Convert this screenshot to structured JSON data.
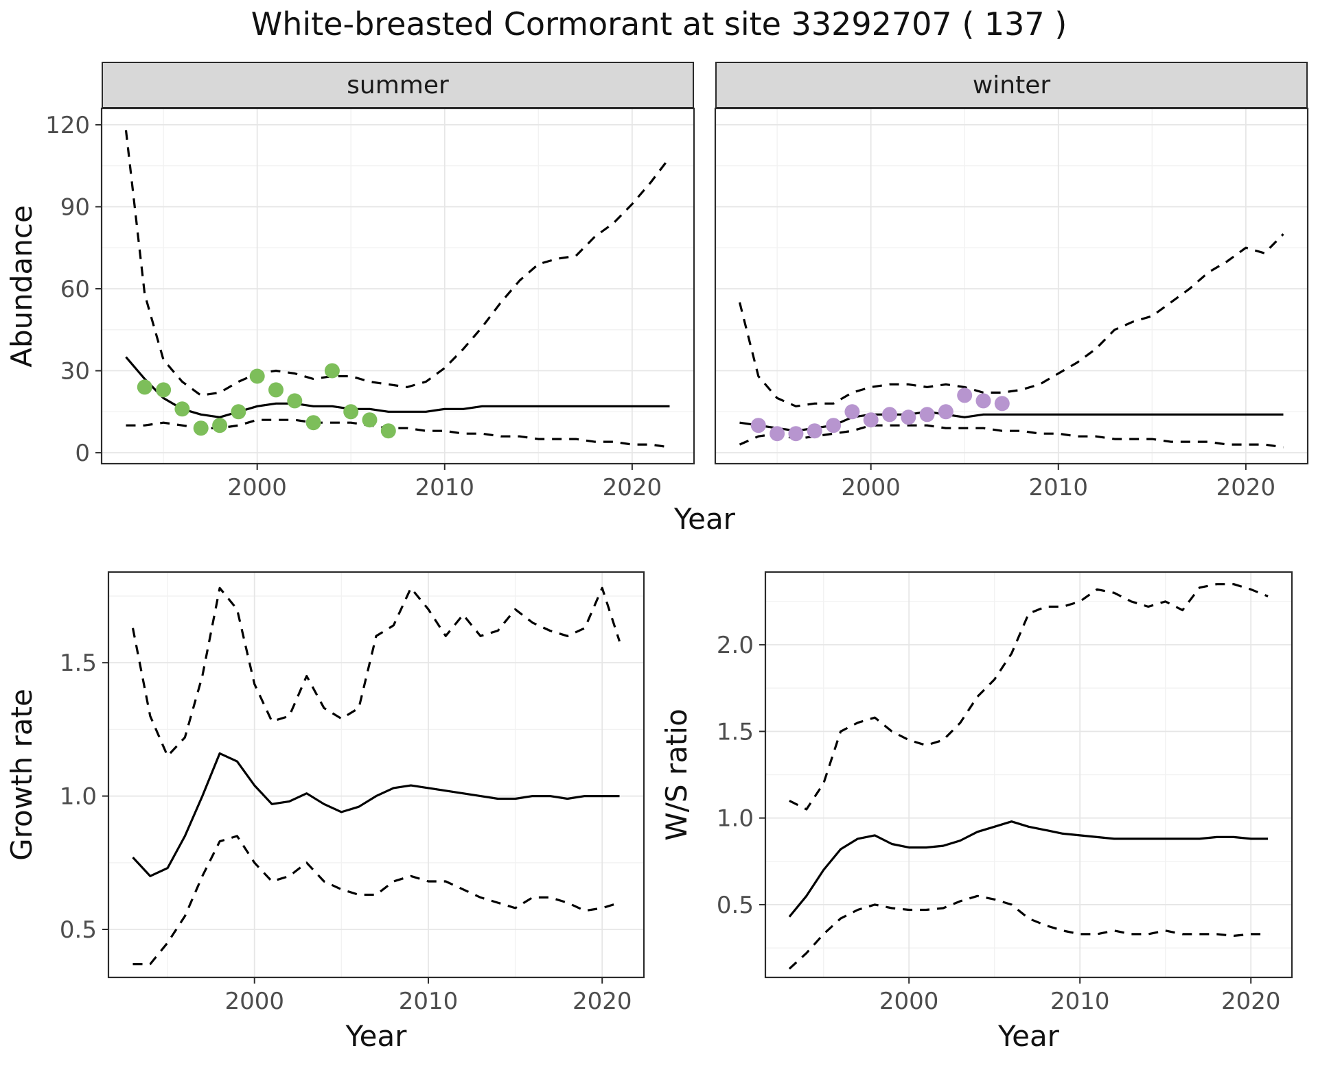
{
  "title": "White-breasted Cormorant at site 33292707 ( 137 )",
  "facets": {
    "summer": "summer",
    "winter": "winter"
  },
  "axes": {
    "top": {
      "x": "Year",
      "y": "Abundance"
    },
    "growth": {
      "x": "Year",
      "y": "Growth rate"
    },
    "ws": {
      "x": "Year",
      "y": "W/S ratio"
    }
  },
  "colors": {
    "line": "#000000",
    "summer_points": "#7dbe5a",
    "winter_points": "#b795cf",
    "strip_bg": "#d8d8d8",
    "panel_border": "#2b2b2b",
    "grid_major": "#e6e6e6",
    "grid_minor": "#f2f2f2",
    "axis_text": "#4d4d4d"
  },
  "chart_data": [
    {
      "id": "abundance-summer",
      "type": "line",
      "facet_label": "summer",
      "xlabel": "Year",
      "ylabel": "Abundance",
      "xlim": [
        1991.7,
        2023.3
      ],
      "ylim": [
        -4,
        126
      ],
      "xticks": {
        "values": [
          2000,
          2010,
          2020
        ],
        "labels": [
          "2000",
          "2010",
          "2020"
        ]
      },
      "xticks_minor": [
        1995,
        2005,
        2015
      ],
      "yticks": {
        "values": [
          0,
          30,
          60,
          90,
          120
        ],
        "labels": [
          "0",
          "30",
          "60",
          "90",
          "120"
        ]
      },
      "yticks_minor": [
        15,
        45,
        75,
        105
      ],
      "x": [
        1993,
        1994,
        1995,
        1996,
        1997,
        1998,
        1999,
        2000,
        2001,
        2002,
        2003,
        2004,
        2005,
        2006,
        2007,
        2008,
        2009,
        2010,
        2011,
        2012,
        2013,
        2014,
        2015,
        2016,
        2017,
        2018,
        2019,
        2020,
        2021,
        2022
      ],
      "series": [
        {
          "name": "median-estimate",
          "style": "solid",
          "y": [
            35,
            27,
            20,
            16,
            14,
            13,
            15,
            17,
            18,
            18,
            17,
            17,
            16,
            16,
            15,
            15,
            15,
            16,
            16,
            17,
            17,
            17,
            17,
            17,
            17,
            17,
            17,
            17,
            17,
            17
          ]
        },
        {
          "name": "upper-credible-interval",
          "style": "dashed",
          "y": [
            118,
            58,
            34,
            26,
            21,
            22,
            26,
            29,
            30,
            29,
            27,
            28,
            28,
            26,
            25,
            24,
            26,
            31,
            38,
            46,
            55,
            63,
            69,
            71,
            72,
            79,
            84,
            91,
            99,
            108
          ]
        },
        {
          "name": "lower-credible-interval",
          "style": "dashed",
          "y": [
            10,
            10,
            11,
            10,
            9,
            9,
            10,
            12,
            12,
            12,
            11,
            11,
            11,
            10,
            9,
            9,
            8,
            8,
            7,
            7,
            6,
            6,
            5,
            5,
            5,
            4,
            4,
            3,
            3,
            2
          ]
        }
      ],
      "points": {
        "name": "observed-counts",
        "color": "#7dbe5a",
        "x": [
          1994,
          1995,
          1996,
          1997,
          1998,
          1999,
          2000,
          2001,
          2002,
          2003,
          2004,
          2005,
          2006,
          2007
        ],
        "y": [
          24,
          23,
          16,
          9,
          10,
          15,
          28,
          23,
          19,
          11,
          30,
          15,
          12,
          8
        ]
      }
    },
    {
      "id": "abundance-winter",
      "type": "line",
      "facet_label": "winter",
      "xlabel": "Year",
      "ylabel": "Abundance",
      "xlim": [
        1991.7,
        2023.3
      ],
      "ylim": [
        -4,
        126
      ],
      "xticks": {
        "values": [
          2000,
          2010,
          2020
        ],
        "labels": [
          "2000",
          "2010",
          "2020"
        ]
      },
      "xticks_minor": [
        1995,
        2005,
        2015
      ],
      "yticks": {
        "values": [
          0,
          30,
          60,
          90,
          120
        ],
        "labels": [
          "0",
          "30",
          "60",
          "90",
          "120"
        ]
      },
      "yticks_minor": [
        15,
        45,
        75,
        105
      ],
      "x": [
        1993,
        1994,
        1995,
        1996,
        1997,
        1998,
        1999,
        2000,
        2001,
        2002,
        2003,
        2004,
        2005,
        2006,
        2007,
        2008,
        2009,
        2010,
        2011,
        2012,
        2013,
        2014,
        2015,
        2016,
        2017,
        2018,
        2019,
        2020,
        2021,
        2022
      ],
      "series": [
        {
          "name": "median-estimate",
          "style": "solid",
          "y": [
            11,
            10,
            9,
            8,
            9,
            10,
            13,
            14,
            14,
            14,
            15,
            14,
            13,
            14,
            14,
            14,
            14,
            14,
            14,
            14,
            14,
            14,
            14,
            14,
            14,
            14,
            14,
            14,
            14,
            14
          ]
        },
        {
          "name": "upper-credible-interval",
          "style": "dashed",
          "y": [
            55,
            28,
            20,
            17,
            18,
            18,
            22,
            24,
            25,
            25,
            24,
            25,
            24,
            22,
            22,
            23,
            25,
            29,
            33,
            38,
            45,
            48,
            50,
            55,
            60,
            66,
            70,
            75,
            73,
            80
          ]
        },
        {
          "name": "lower-credible-interval",
          "style": "dashed",
          "y": [
            3,
            6,
            7,
            5,
            6,
            7,
            8,
            10,
            10,
            10,
            10,
            9,
            9,
            9,
            8,
            8,
            7,
            7,
            6,
            6,
            5,
            5,
            5,
            4,
            4,
            4,
            3,
            3,
            3,
            2
          ]
        }
      ],
      "points": {
        "name": "observed-counts",
        "color": "#b795cf",
        "x": [
          1994,
          1995,
          1996,
          1997,
          1998,
          1999,
          2000,
          2001,
          2002,
          2003,
          2004,
          2005,
          2006,
          2007
        ],
        "y": [
          10,
          7,
          7,
          8,
          10,
          15,
          12,
          14,
          13,
          14,
          15,
          21,
          19,
          18
        ]
      }
    },
    {
      "id": "growth-rate",
      "type": "line",
      "xlabel": "Year",
      "ylabel": "Growth rate",
      "xlim": [
        1991.6,
        2022.4
      ],
      "ylim": [
        0.32,
        1.84
      ],
      "xticks": {
        "values": [
          2000,
          2010,
          2020
        ],
        "labels": [
          "2000",
          "2010",
          "2020"
        ]
      },
      "xticks_minor": [
        1995,
        2005,
        2015
      ],
      "yticks": {
        "values": [
          0.5,
          1.0,
          1.5
        ],
        "labels": [
          "0.5",
          "1.0",
          "1.5"
        ]
      },
      "yticks_minor": [
        0.75,
        1.25,
        1.75
      ],
      "x": [
        1993,
        1994,
        1995,
        1996,
        1997,
        1998,
        1999,
        2000,
        2001,
        2002,
        2003,
        2004,
        2005,
        2006,
        2007,
        2008,
        2009,
        2010,
        2011,
        2012,
        2013,
        2014,
        2015,
        2016,
        2017,
        2018,
        2019,
        2020,
        2021
      ],
      "series": [
        {
          "name": "median-estimate",
          "style": "solid",
          "y": [
            0.77,
            0.7,
            0.73,
            0.85,
            1.0,
            1.16,
            1.13,
            1.04,
            0.97,
            0.98,
            1.01,
            0.97,
            0.94,
            0.96,
            1.0,
            1.03,
            1.04,
            1.03,
            1.02,
            1.01,
            1.0,
            0.99,
            0.99,
            1.0,
            1.0,
            0.99,
            1.0,
            1.0,
            1.0
          ]
        },
        {
          "name": "upper-credible-interval",
          "style": "dashed",
          "y": [
            1.63,
            1.3,
            1.15,
            1.22,
            1.45,
            1.78,
            1.7,
            1.42,
            1.28,
            1.3,
            1.45,
            1.33,
            1.29,
            1.33,
            1.6,
            1.64,
            1.78,
            1.7,
            1.6,
            1.68,
            1.6,
            1.62,
            1.7,
            1.65,
            1.62,
            1.6,
            1.63,
            1.78,
            1.58
          ]
        },
        {
          "name": "lower-credible-interval",
          "style": "dashed",
          "y": [
            0.37,
            0.37,
            0.45,
            0.55,
            0.7,
            0.83,
            0.85,
            0.75,
            0.68,
            0.7,
            0.75,
            0.68,
            0.65,
            0.63,
            0.63,
            0.68,
            0.7,
            0.68,
            0.68,
            0.65,
            0.62,
            0.6,
            0.58,
            0.62,
            0.62,
            0.6,
            0.57,
            0.58,
            0.6
          ]
        }
      ]
    },
    {
      "id": "ws-ratio",
      "type": "line",
      "xlabel": "Year",
      "ylabel": "W/S ratio",
      "xlim": [
        1991.6,
        2022.4
      ],
      "ylim": [
        0.08,
        2.42
      ],
      "xticks": {
        "values": [
          2000,
          2010,
          2020
        ],
        "labels": [
          "2000",
          "2010",
          "2020"
        ]
      },
      "xticks_minor": [
        1995,
        2005,
        2015
      ],
      "yticks": {
        "values": [
          0.5,
          1.0,
          1.5,
          2.0
        ],
        "labels": [
          "0.5",
          "1.0",
          "1.5",
          "2.0"
        ]
      },
      "yticks_minor": [
        0.25,
        0.75,
        1.25,
        1.75,
        2.25
      ],
      "x": [
        1993,
        1994,
        1995,
        1996,
        1997,
        1998,
        1999,
        2000,
        2001,
        2002,
        2003,
        2004,
        2005,
        2006,
        2007,
        2008,
        2009,
        2010,
        2011,
        2012,
        2013,
        2014,
        2015,
        2016,
        2017,
        2018,
        2019,
        2020,
        2021
      ],
      "series": [
        {
          "name": "median-estimate",
          "style": "solid",
          "y": [
            0.43,
            0.55,
            0.7,
            0.82,
            0.88,
            0.9,
            0.85,
            0.83,
            0.83,
            0.84,
            0.87,
            0.92,
            0.95,
            0.98,
            0.95,
            0.93,
            0.91,
            0.9,
            0.89,
            0.88,
            0.88,
            0.88,
            0.88,
            0.88,
            0.88,
            0.89,
            0.89,
            0.88,
            0.88
          ]
        },
        {
          "name": "upper-credible-interval",
          "style": "dashed",
          "y": [
            1.1,
            1.05,
            1.2,
            1.5,
            1.55,
            1.58,
            1.5,
            1.45,
            1.42,
            1.45,
            1.55,
            1.7,
            1.8,
            1.95,
            2.18,
            2.22,
            2.22,
            2.25,
            2.32,
            2.3,
            2.25,
            2.22,
            2.25,
            2.2,
            2.33,
            2.35,
            2.35,
            2.32,
            2.28
          ]
        },
        {
          "name": "lower-credible-interval",
          "style": "dashed",
          "y": [
            0.13,
            0.22,
            0.33,
            0.42,
            0.47,
            0.5,
            0.48,
            0.47,
            0.47,
            0.48,
            0.52,
            0.55,
            0.53,
            0.5,
            0.42,
            0.38,
            0.35,
            0.33,
            0.33,
            0.35,
            0.33,
            0.33,
            0.35,
            0.33,
            0.33,
            0.33,
            0.32,
            0.33,
            0.33
          ]
        }
      ]
    }
  ]
}
